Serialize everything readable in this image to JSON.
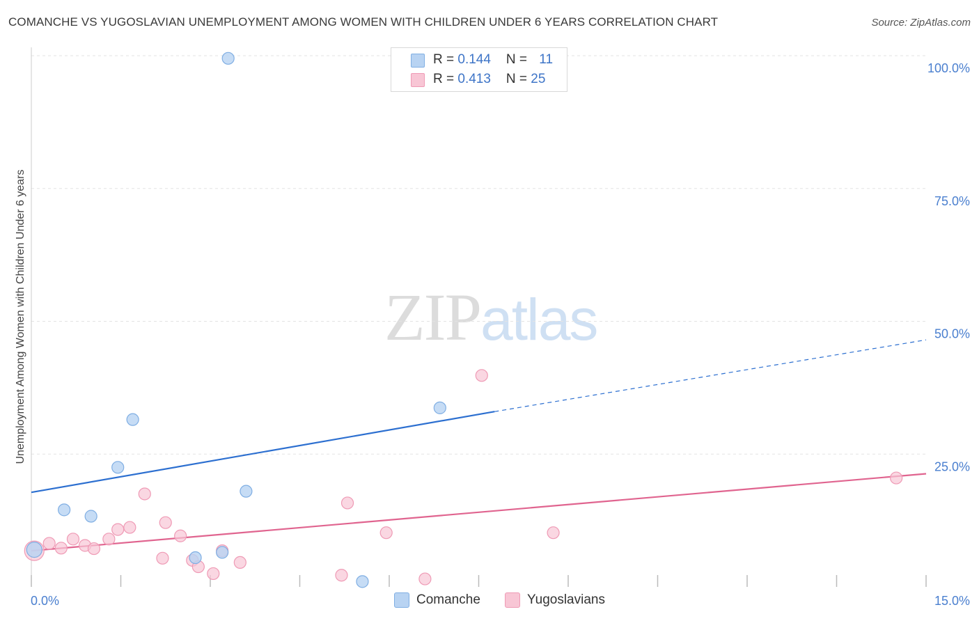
{
  "title": "COMANCHE VS YUGOSLAVIAN UNEMPLOYMENT AMONG WOMEN WITH CHILDREN UNDER 6 YEARS CORRELATION CHART",
  "source": "Source: ZipAtlas.com",
  "watermark": {
    "zip": "ZIP",
    "atlas": "atlas"
  },
  "legend": {
    "comanche": {
      "r_label": "R = ",
      "r_value": "0.144",
      "n_label": "N = ",
      "n_value": "11"
    },
    "yugoslavians": {
      "r_label": "R = ",
      "r_value": "0.413",
      "n_label": "N = ",
      "n_value": "25"
    }
  },
  "bottom_legend": {
    "comanche": "Comanche",
    "yugoslavians": "Yugoslavians"
  },
  "colors": {
    "comanche_fill": "#b8d3f2",
    "comanche_stroke": "#7faee3",
    "comanche_line": "#2c6fd0",
    "yugo_fill": "#f8c6d5",
    "yugo_stroke": "#ef9ab5",
    "yugo_line": "#e0648f",
    "grid": "#e3e3e3",
    "tick": "#4a7fcf"
  },
  "chart_data": {
    "type": "scatter",
    "title": "COMANCHE VS YUGOSLAVIAN UNEMPLOYMENT AMONG WOMEN WITH CHILDREN UNDER 6 YEARS CORRELATION CHART",
    "xlabel": "",
    "ylabel": "Unemployment Among Women with Children Under 6 years",
    "xlim": [
      0,
      15
    ],
    "ylim": [
      0,
      100
    ],
    "x_tick_labels": [
      "0.0%",
      "15.0%"
    ],
    "y_ticks": [
      25,
      50,
      75,
      100
    ],
    "y_tick_labels": [
      "25.0%",
      "50.0%",
      "75.0%",
      "100.0%"
    ],
    "series": [
      {
        "name": "Comanche",
        "R": 0.144,
        "N": 11,
        "points": [
          [
            0.05,
            7.0
          ],
          [
            0.55,
            14.5
          ],
          [
            1.0,
            13.3
          ],
          [
            1.45,
            22.5
          ],
          [
            1.7,
            31.5
          ],
          [
            2.75,
            5.5
          ],
          [
            3.2,
            6.5
          ],
          [
            3.6,
            18.0
          ],
          [
            3.3,
            99.5
          ],
          [
            5.55,
            1.0
          ],
          [
            6.85,
            33.7
          ]
        ],
        "trend": {
          "x0": 0,
          "y0": 17.8,
          "x1": 8.0,
          "y1": 33.0,
          "dash_to_x": 15,
          "dash_to_y": 46.5
        }
      },
      {
        "name": "Yugoslavians",
        "R": 0.413,
        "N": 25,
        "points": [
          [
            0.05,
            6.8
          ],
          [
            0.3,
            8.2
          ],
          [
            0.5,
            7.3
          ],
          [
            0.7,
            9.0
          ],
          [
            0.9,
            7.8
          ],
          [
            1.05,
            7.2
          ],
          [
            1.3,
            9.0
          ],
          [
            1.45,
            10.8
          ],
          [
            1.65,
            11.2
          ],
          [
            1.9,
            17.5
          ],
          [
            2.2,
            5.4
          ],
          [
            2.25,
            12.1
          ],
          [
            2.5,
            9.6
          ],
          [
            2.7,
            5.0
          ],
          [
            2.8,
            3.8
          ],
          [
            3.05,
            2.5
          ],
          [
            3.2,
            6.8
          ],
          [
            3.5,
            4.6
          ],
          [
            5.2,
            2.2
          ],
          [
            5.3,
            15.8
          ],
          [
            5.95,
            10.2
          ],
          [
            6.6,
            1.5
          ],
          [
            7.55,
            39.8
          ],
          [
            8.75,
            10.2
          ],
          [
            14.5,
            20.5
          ]
        ],
        "trend": {
          "x0": 0,
          "y0": 6.8,
          "x1": 15,
          "y1": 21.3
        }
      }
    ]
  }
}
